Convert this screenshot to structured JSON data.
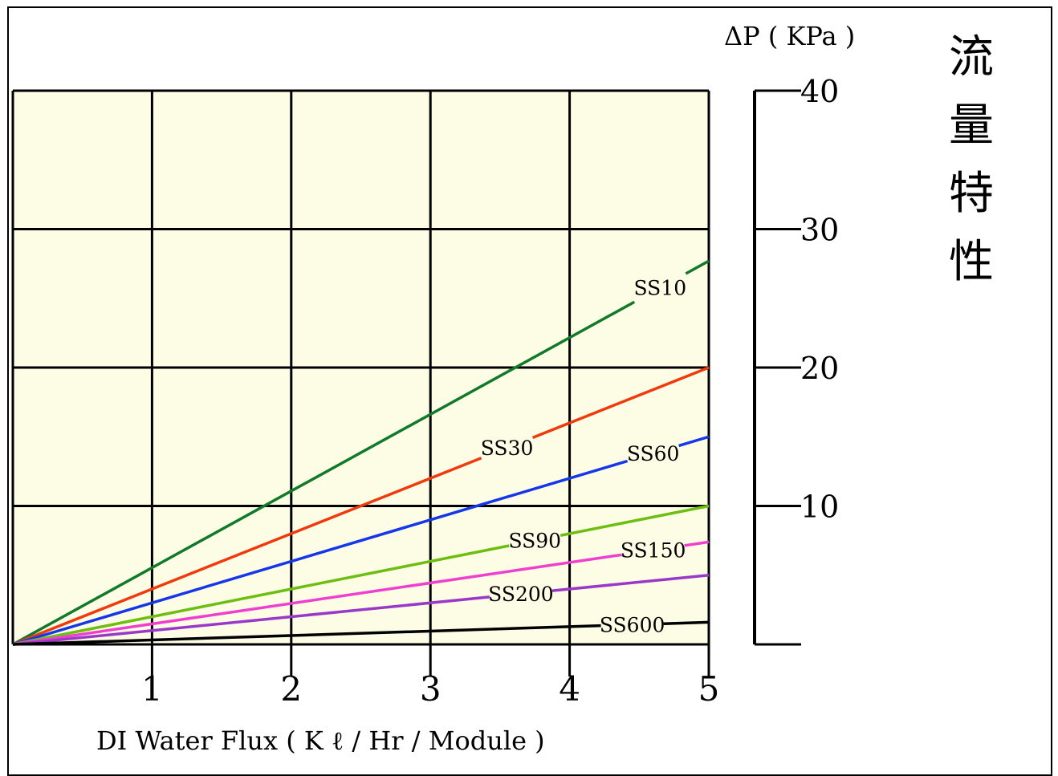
{
  "chart_data": {
    "type": "line",
    "title": "流量特性",
    "xlabel": "DI Water Flux ( K ℓ  / Hr / Module )",
    "ylabel": "ΔP  ( KPa )",
    "xlim": [
      0,
      5
    ],
    "ylim": [
      0,
      40
    ],
    "x_ticks": [
      "1",
      "2",
      "3",
      "4",
      "5"
    ],
    "y_ticks": [
      "10",
      "20",
      "30",
      "40"
    ],
    "grid": true,
    "background": "#fdfde6",
    "series": [
      {
        "name": "SS10",
        "color": "#117a2a",
        "x": [
          0,
          5
        ],
        "y": [
          0,
          27.7
        ]
      },
      {
        "name": "SS30",
        "color": "#f03a0e",
        "x": [
          0,
          5
        ],
        "y": [
          0,
          20
        ]
      },
      {
        "name": "SS60",
        "color": "#1537e8",
        "x": [
          0,
          5
        ],
        "y": [
          0,
          15
        ]
      },
      {
        "name": "SS90",
        "color": "#6cbf10",
        "x": [
          0,
          5
        ],
        "y": [
          0,
          10
        ]
      },
      {
        "name": "SS150",
        "color": "#ef3fcf",
        "x": [
          0,
          5
        ],
        "y": [
          0,
          7.4
        ]
      },
      {
        "name": "SS200",
        "color": "#9a38c8",
        "x": [
          0,
          5
        ],
        "y": [
          0,
          5
        ]
      },
      {
        "name": "SS600",
        "color": "#000000",
        "x": [
          0,
          5
        ],
        "y": [
          0,
          1.6
        ]
      }
    ]
  }
}
